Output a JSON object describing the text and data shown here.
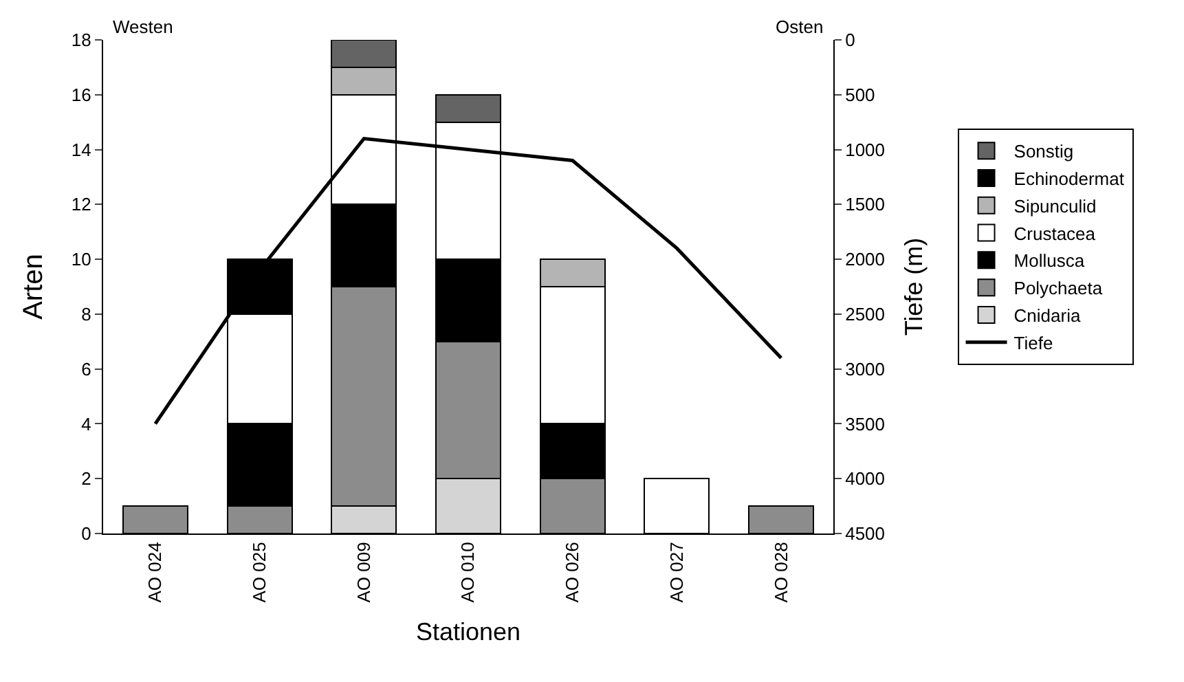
{
  "chart_data": {
    "type": "bar",
    "stacked": true,
    "xlabel": "Stationen",
    "ylabel": "Arten",
    "y2label": "Tiefe (m)",
    "categories": [
      "AO 024",
      "AO 025",
      "AO 009",
      "AO 010",
      "AO 026",
      "AO 027",
      "AO 028"
    ],
    "series": [
      {
        "name": "Cnidaria",
        "color": "#d4d4d4",
        "values": [
          null,
          null,
          1,
          2,
          null,
          null,
          null
        ]
      },
      {
        "name": "Polychaeta",
        "color": "#8c8c8c",
        "values": [
          1,
          1,
          8,
          5,
          2,
          null,
          1
        ]
      },
      {
        "name": "Mollusca",
        "color": "#000000",
        "values": [
          null,
          3,
          3,
          3,
          2,
          null,
          null
        ]
      },
      {
        "name": "Crustacea",
        "color": "#ffffff",
        "values": [
          null,
          4,
          4,
          5,
          5,
          2,
          null
        ]
      },
      {
        "name": "Sipunculid",
        "color": "#b4b4b4",
        "values": [
          null,
          null,
          1,
          null,
          1,
          null,
          null
        ]
      },
      {
        "name": "Echinodermat",
        "color": "#000000",
        "values": [
          null,
          2,
          null,
          null,
          null,
          null,
          null
        ]
      },
      {
        "name": "Sonstig",
        "color": "#646464",
        "values": [
          null,
          null,
          1,
          1,
          null,
          null,
          null
        ]
      },
      {
        "name": "Tiefe",
        "type": "line",
        "axis": "y2",
        "color": "#000000",
        "values": [
          3500,
          2100,
          900,
          1000,
          1100,
          1900,
          2900
        ]
      }
    ],
    "ylim": [
      0,
      18
    ],
    "yticks": [
      0,
      2,
      4,
      6,
      8,
      10,
      12,
      14,
      16,
      18
    ],
    "y2lim": [
      4500,
      0
    ],
    "y2ticks": [
      0,
      500,
      1000,
      1500,
      2000,
      2500,
      3000,
      3500,
      4000,
      4500
    ],
    "annotations": [
      "Westen",
      "Osten"
    ],
    "legend": "right",
    "grid": false,
    "marker": "none",
    "line_style": "solid"
  }
}
